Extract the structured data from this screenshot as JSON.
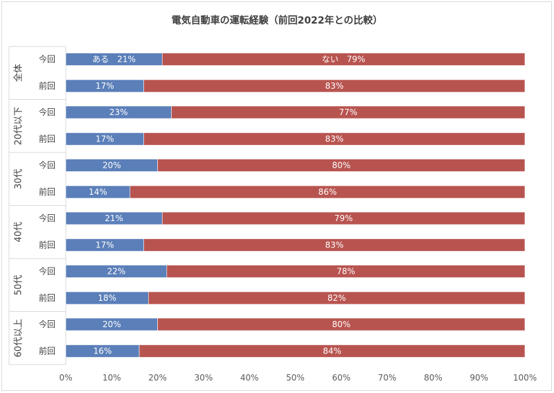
{
  "chart_data": {
    "type": "bar",
    "orientation": "horizontal",
    "stacked": "percent",
    "title": "電気自動車の運転経験（前回2022年との比較）",
    "groups": [
      {
        "label": "全体",
        "rows": [
          {
            "label": "今回",
            "ari": 21,
            "nai": 79
          },
          {
            "label": "前回",
            "ari": 17,
            "nai": 83
          }
        ]
      },
      {
        "label": "20代以下",
        "rows": [
          {
            "label": "今回",
            "ari": 23,
            "nai": 77
          },
          {
            "label": "前回",
            "ari": 17,
            "nai": 83
          }
        ]
      },
      {
        "label": "30代",
        "rows": [
          {
            "label": "今回",
            "ari": 20,
            "nai": 80
          },
          {
            "label": "前回",
            "ari": 14,
            "nai": 86
          }
        ]
      },
      {
        "label": "40代",
        "rows": [
          {
            "label": "今回",
            "ari": 21,
            "nai": 79
          },
          {
            "label": "前回",
            "ari": 17,
            "nai": 83
          }
        ]
      },
      {
        "label": "50代",
        "rows": [
          {
            "label": "今回",
            "ari": 22,
            "nai": 78
          },
          {
            "label": "前回",
            "ari": 18,
            "nai": 82
          }
        ]
      },
      {
        "label": "60代以上",
        "rows": [
          {
            "label": "今回",
            "ari": 20,
            "nai": 80
          },
          {
            "label": "前回",
            "ari": 16,
            "nai": 84
          }
        ]
      }
    ],
    "series": [
      {
        "name": "ある",
        "key": "ari",
        "color": "#5b7fb9"
      },
      {
        "name": "ない",
        "key": "nai",
        "color": "#b85450"
      }
    ],
    "xaxis": {
      "ticks": [
        0,
        10,
        20,
        30,
        40,
        50,
        60,
        70,
        80,
        90,
        100
      ],
      "tick_labels": [
        "0%",
        "10%",
        "20%",
        "30%",
        "40%",
        "50%",
        "60%",
        "70%",
        "80%",
        "90%",
        "100%"
      ],
      "range": [
        0,
        100
      ]
    },
    "grid": false,
    "legend": "none"
  }
}
